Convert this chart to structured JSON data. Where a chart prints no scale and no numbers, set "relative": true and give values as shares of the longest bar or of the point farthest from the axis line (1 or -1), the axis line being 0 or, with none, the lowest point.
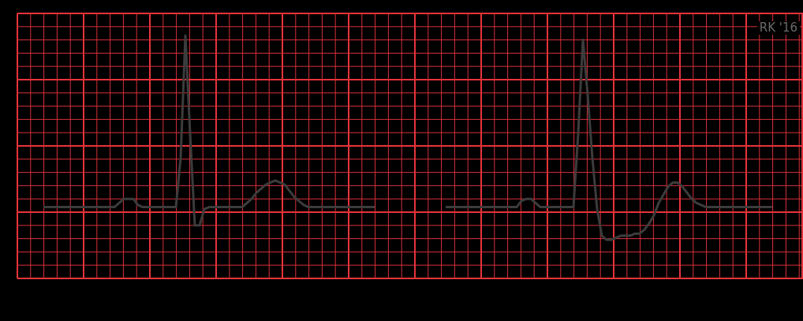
{
  "chart_data": {
    "type": "line",
    "relative": true,
    "grid": true,
    "tick_labels": false,
    "marker": "none",
    "line_style": "solid",
    "annotations": [
      "RK '16"
    ],
    "categories": [
      null,
      null,
      null,
      null,
      null,
      null,
      null,
      null,
      null,
      null,
      null,
      null,
      null,
      null,
      null,
      null,
      null,
      null,
      null,
      null,
      null,
      null,
      null,
      null,
      null,
      null,
      null,
      null,
      null,
      null,
      null,
      null,
      null,
      null,
      null,
      null,
      null,
      null,
      null,
      null,
      null,
      null,
      null,
      null,
      null,
      null,
      null,
      null,
      null,
      null,
      null,
      null,
      null,
      null,
      null,
      null,
      null,
      null,
      null,
      null,
      null,
      null,
      null,
      null,
      null,
      null,
      null,
      null,
      null,
      null,
      null,
      null,
      null,
      null,
      null,
      null,
      null,
      null,
      null,
      null,
      null,
      null,
      null,
      null,
      null,
      null,
      null,
      null,
      null,
      null,
      null,
      null,
      null,
      null,
      null,
      null,
      null,
      null,
      null,
      null,
      null,
      null,
      null,
      null,
      null,
      null,
      null,
      null,
      null,
      null,
      null,
      null,
      null,
      null,
      null,
      null,
      null,
      null,
      null,
      null,
      null,
      null,
      null,
      null,
      null,
      null,
      null,
      null,
      null,
      null,
      null,
      null,
      null,
      null,
      null,
      null,
      null,
      null,
      null,
      null,
      null,
      null,
      null,
      null,
      null,
      null,
      null,
      null,
      null,
      null,
      null,
      null,
      null,
      null,
      null
    ],
    "series": [
      {
        "color": "#3c3c3c",
        "values": [
          0.16,
          0.16,
          0.16,
          0.16,
          0.16,
          0.16,
          0.16,
          0.16,
          0.16,
          0.16,
          0.16,
          0.16,
          0.16,
          0.16,
          0.16,
          0.16,
          0.18,
          0.2,
          0.2,
          0.2,
          0.17,
          0.16,
          0.16,
          0.16,
          0.16,
          0.16,
          0.16,
          0.16,
          0.16,
          0.4,
          1,
          0.52,
          0.07,
          0.07,
          0.15,
          0.16,
          0.16,
          0.16,
          0.16,
          0.16,
          0.16,
          0.16,
          0.16,
          0.18,
          0.2,
          0.23,
          0.25,
          0.27,
          0.28,
          0.29,
          0.28,
          0.27,
          0.24,
          0.21,
          0.19,
          0.17,
          0.16,
          0.16,
          0.16,
          0.16,
          0.16,
          0.16,
          0.16,
          0.16,
          0.16,
          0.16,
          0.16,
          0.16,
          0.16,
          0.16,
          0.16,
          null,
          null,
          null,
          null,
          null,
          null,
          null,
          null,
          null,
          null,
          null,
          null,
          null,
          null,
          null,
          null,
          null,
          null,
          null,
          null,
          null,
          null,
          null,
          null,
          null,
          null,
          null,
          null,
          null,
          null,
          null,
          null,
          null,
          null,
          null,
          null,
          null,
          null,
          null,
          null,
          null,
          null,
          null,
          null,
          null,
          null,
          null,
          null,
          null,
          null,
          null,
          null,
          null,
          null,
          null,
          null,
          null,
          null,
          null,
          null,
          null,
          null,
          null,
          null,
          null,
          null,
          null,
          null,
          null,
          null,
          null,
          null,
          null,
          null,
          null,
          null,
          null,
          null,
          null,
          null,
          null,
          null,
          null,
          null
        ]
      },
      {
        "color": "#3c3c3c",
        "values": [
          null,
          null,
          null,
          null,
          null,
          null,
          null,
          null,
          null,
          null,
          null,
          null,
          null,
          null,
          null,
          null,
          null,
          null,
          null,
          null,
          null,
          null,
          null,
          null,
          null,
          null,
          null,
          null,
          null,
          null,
          null,
          null,
          null,
          null,
          null,
          null,
          null,
          null,
          null,
          null,
          null,
          null,
          null,
          null,
          null,
          null,
          null,
          null,
          null,
          null,
          null,
          null,
          null,
          null,
          null,
          null,
          null,
          null,
          null,
          null,
          null,
          null,
          null,
          null,
          null,
          null,
          null,
          null,
          null,
          null,
          null,
          null,
          null,
          null,
          null,
          null,
          null,
          null,
          null,
          null,
          null,
          null,
          null,
          null,
          null,
          0.16,
          0.16,
          0.16,
          0.16,
          0.16,
          0.16,
          0.16,
          0.16,
          0.16,
          0.16,
          0.16,
          0.16,
          0.16,
          0.16,
          0.16,
          0.16,
          0.19,
          0.2,
          0.2,
          0.18,
          0.16,
          0.16,
          0.16,
          0.16,
          0.16,
          0.16,
          0.16,
          0.16,
          0.52,
          0.98,
          0.71,
          0.4,
          0.15,
          0.02,
          0,
          0,
          0.01,
          0.02,
          0.02,
          0.02,
          0.03,
          0.03,
          0.05,
          0.08,
          0.12,
          0.18,
          0.22,
          0.26,
          0.28,
          0.28,
          0.26,
          0.23,
          0.2,
          0.18,
          0.17,
          0.16,
          0.16,
          0.16,
          0.16,
          0.16,
          0.16,
          0.16,
          0.16,
          0.16,
          0.16,
          0.16,
          0.16,
          0.16,
          0.16,
          0.16
        ]
      }
    ]
  }
}
